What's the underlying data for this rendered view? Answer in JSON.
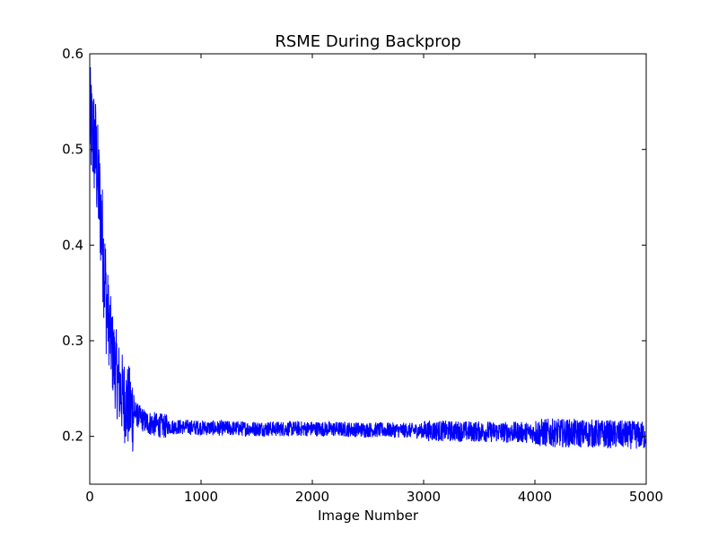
{
  "chart_data": {
    "type": "line",
    "title": "RSME During Backprop",
    "xlabel": "Image Number",
    "ylabel": "",
    "xlim": [
      0,
      5000
    ],
    "ylim": [
      0.15,
      0.6
    ],
    "x_ticks": [
      "0",
      "1000",
      "2000",
      "3000",
      "4000",
      "5000"
    ],
    "y_ticks": [
      "0.2",
      "0.3",
      "0.4",
      "0.5",
      "0.6"
    ],
    "grid": false,
    "legend": "none",
    "series": [
      {
        "color": "#0000ff",
        "x": [
          0,
          50,
          100,
          150,
          200,
          250,
          300,
          350,
          400,
          450,
          500,
          600,
          700,
          800,
          1000,
          1500,
          2000,
          2500,
          3000,
          3500,
          4000,
          4500,
          5000
        ],
        "y": [
          0.53,
          0.5,
          0.43,
          0.34,
          0.29,
          0.26,
          0.24,
          0.23,
          0.225,
          0.22,
          0.215,
          0.212,
          0.21,
          0.21,
          0.209,
          0.208,
          0.208,
          0.207,
          0.206,
          0.205,
          0.204,
          0.203,
          0.201
        ]
      }
    ]
  }
}
